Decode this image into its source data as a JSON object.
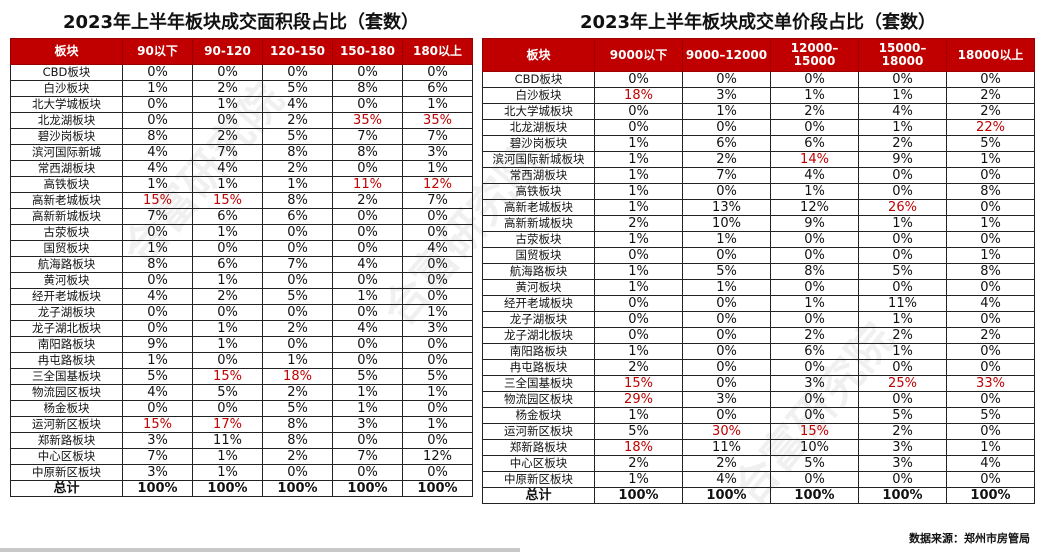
{
  "watermark": "合富研究院",
  "source": "数据来源：郑州市房管局",
  "left": {
    "title": "2023年上半年板块成交面积段占比（套数）",
    "headers": [
      "板块",
      "90以下",
      "90-120",
      "120-150",
      "150-180",
      "180以上"
    ],
    "rows": [
      {
        "name": "CBD板块",
        "values": [
          "0%",
          "0%",
          "0%",
          "0%",
          "0%"
        ],
        "hl": []
      },
      {
        "name": "白沙板块",
        "values": [
          "1%",
          "2%",
          "5%",
          "8%",
          "6%"
        ],
        "hl": []
      },
      {
        "name": "北大学城板块",
        "values": [
          "0%",
          "1%",
          "4%",
          "0%",
          "1%"
        ],
        "hl": []
      },
      {
        "name": "北龙湖板块",
        "values": [
          "0%",
          "0%",
          "2%",
          "35%",
          "35%"
        ],
        "hl": [
          3,
          4
        ]
      },
      {
        "name": "碧沙岗板块",
        "values": [
          "8%",
          "2%",
          "5%",
          "7%",
          "7%"
        ],
        "hl": []
      },
      {
        "name": "滨河国际新城",
        "values": [
          "4%",
          "7%",
          "8%",
          "8%",
          "3%"
        ],
        "hl": []
      },
      {
        "name": "常西湖板块",
        "values": [
          "4%",
          "4%",
          "2%",
          "0%",
          "1%"
        ],
        "hl": []
      },
      {
        "name": "高铁板块",
        "values": [
          "1%",
          "1%",
          "1%",
          "11%",
          "12%"
        ],
        "hl": [
          3,
          4
        ]
      },
      {
        "name": "高新老城板块",
        "values": [
          "15%",
          "15%",
          "8%",
          "2%",
          "7%"
        ],
        "hl": [
          0,
          1
        ]
      },
      {
        "name": "高新新城板块",
        "values": [
          "7%",
          "6%",
          "6%",
          "0%",
          "0%"
        ],
        "hl": []
      },
      {
        "name": "古荥板块",
        "values": [
          "0%",
          "1%",
          "0%",
          "0%",
          "0%"
        ],
        "hl": []
      },
      {
        "name": "国贸板块",
        "values": [
          "1%",
          "0%",
          "0%",
          "0%",
          "4%"
        ],
        "hl": []
      },
      {
        "name": "航海路板块",
        "values": [
          "8%",
          "6%",
          "7%",
          "4%",
          "0%"
        ],
        "hl": []
      },
      {
        "name": "黄河板块",
        "values": [
          "0%",
          "1%",
          "0%",
          "0%",
          "0%"
        ],
        "hl": []
      },
      {
        "name": "经开老城板块",
        "values": [
          "4%",
          "2%",
          "5%",
          "1%",
          "0%"
        ],
        "hl": []
      },
      {
        "name": "龙子湖板块",
        "values": [
          "0%",
          "0%",
          "0%",
          "0%",
          "1%"
        ],
        "hl": []
      },
      {
        "name": "龙子湖北板块",
        "values": [
          "0%",
          "1%",
          "2%",
          "4%",
          "3%"
        ],
        "hl": []
      },
      {
        "name": "南阳路板块",
        "values": [
          "9%",
          "1%",
          "0%",
          "0%",
          "0%"
        ],
        "hl": []
      },
      {
        "name": "冉屯路板块",
        "values": [
          "1%",
          "0%",
          "1%",
          "0%",
          "0%"
        ],
        "hl": []
      },
      {
        "name": "三全国基板块",
        "values": [
          "5%",
          "15%",
          "18%",
          "5%",
          "5%"
        ],
        "hl": [
          1,
          2
        ]
      },
      {
        "name": "物流园区板块",
        "values": [
          "4%",
          "5%",
          "2%",
          "1%",
          "1%"
        ],
        "hl": []
      },
      {
        "name": "杨金板块",
        "values": [
          "0%",
          "0%",
          "5%",
          "1%",
          "0%"
        ],
        "hl": []
      },
      {
        "name": "运河新区板块",
        "values": [
          "15%",
          "17%",
          "8%",
          "3%",
          "1%"
        ],
        "hl": [
          0,
          1
        ]
      },
      {
        "name": "郑新路板块",
        "values": [
          "3%",
          "11%",
          "8%",
          "0%",
          "0%"
        ],
        "hl": []
      },
      {
        "name": "中心区板块",
        "values": [
          "7%",
          "1%",
          "2%",
          "7%",
          "12%"
        ],
        "hl": []
      },
      {
        "name": "中原新区板块",
        "values": [
          "3%",
          "1%",
          "0%",
          "0%",
          "0%"
        ],
        "hl": []
      }
    ],
    "total": {
      "name": "总计",
      "values": [
        "100%",
        "100%",
        "100%",
        "100%",
        "100%"
      ]
    }
  },
  "right": {
    "title": "2023年上半年板块成交单价段占比（套数）",
    "headers": [
      "板块",
      "9000以下",
      "9000–12000",
      "12000–15000",
      "15000–18000",
      "18000以上"
    ],
    "rows": [
      {
        "name": "CBD板块",
        "values": [
          "0%",
          "0%",
          "0%",
          "0%",
          "0%"
        ],
        "hl": []
      },
      {
        "name": "白沙板块",
        "values": [
          "18%",
          "3%",
          "1%",
          "1%",
          "2%"
        ],
        "hl": [
          0
        ]
      },
      {
        "name": "北大学城板块",
        "values": [
          "0%",
          "1%",
          "2%",
          "4%",
          "2%"
        ],
        "hl": []
      },
      {
        "name": "北龙湖板块",
        "values": [
          "0%",
          "0%",
          "0%",
          "1%",
          "22%"
        ],
        "hl": [
          4
        ]
      },
      {
        "name": "碧沙岗板块",
        "values": [
          "1%",
          "6%",
          "6%",
          "2%",
          "5%"
        ],
        "hl": []
      },
      {
        "name": "滨河国际新城板块",
        "values": [
          "1%",
          "2%",
          "14%",
          "9%",
          "1%"
        ],
        "hl": [
          2
        ]
      },
      {
        "name": "常西湖板块",
        "values": [
          "1%",
          "7%",
          "4%",
          "0%",
          "0%"
        ],
        "hl": []
      },
      {
        "name": "高铁板块",
        "values": [
          "1%",
          "0%",
          "1%",
          "0%",
          "8%"
        ],
        "hl": []
      },
      {
        "name": "高新老城板块",
        "values": [
          "1%",
          "13%",
          "12%",
          "26%",
          "0%"
        ],
        "hl": [
          3
        ]
      },
      {
        "name": "高新新城板块",
        "values": [
          "2%",
          "10%",
          "9%",
          "1%",
          "1%"
        ],
        "hl": []
      },
      {
        "name": "古荥板块",
        "values": [
          "1%",
          "1%",
          "0%",
          "0%",
          "0%"
        ],
        "hl": []
      },
      {
        "name": "国贸板块",
        "values": [
          "0%",
          "0%",
          "0%",
          "0%",
          "1%"
        ],
        "hl": []
      },
      {
        "name": "航海路板块",
        "values": [
          "1%",
          "5%",
          "8%",
          "5%",
          "8%"
        ],
        "hl": []
      },
      {
        "name": "黄河板块",
        "values": [
          "1%",
          "1%",
          "0%",
          "0%",
          "0%"
        ],
        "hl": []
      },
      {
        "name": "经开老城板块",
        "values": [
          "0%",
          "0%",
          "1%",
          "11%",
          "4%"
        ],
        "hl": []
      },
      {
        "name": "龙子湖板块",
        "values": [
          "0%",
          "0%",
          "0%",
          "1%",
          "0%"
        ],
        "hl": []
      },
      {
        "name": "龙子湖北板块",
        "values": [
          "0%",
          "0%",
          "2%",
          "2%",
          "2%"
        ],
        "hl": []
      },
      {
        "name": "南阳路板块",
        "values": [
          "1%",
          "0%",
          "6%",
          "1%",
          "0%"
        ],
        "hl": []
      },
      {
        "name": "冉屯路板块",
        "values": [
          "2%",
          "0%",
          "0%",
          "0%",
          "0%"
        ],
        "hl": []
      },
      {
        "name": "三全国基板块",
        "values": [
          "15%",
          "0%",
          "3%",
          "25%",
          "33%"
        ],
        "hl": [
          0,
          3,
          4
        ]
      },
      {
        "name": "物流园区板块",
        "values": [
          "29%",
          "3%",
          "0%",
          "0%",
          "0%"
        ],
        "hl": [
          0
        ]
      },
      {
        "name": "杨金板块",
        "values": [
          "1%",
          "0%",
          "0%",
          "5%",
          "5%"
        ],
        "hl": []
      },
      {
        "name": "运河新区板块",
        "values": [
          "5%",
          "30%",
          "15%",
          "2%",
          "0%"
        ],
        "hl": [
          1,
          2
        ]
      },
      {
        "name": "郑新路板块",
        "values": [
          "18%",
          "11%",
          "10%",
          "3%",
          "1%"
        ],
        "hl": [
          0
        ]
      },
      {
        "name": "中心区板块",
        "values": [
          "2%",
          "2%",
          "5%",
          "3%",
          "4%"
        ],
        "hl": []
      },
      {
        "name": "中原新区板块",
        "values": [
          "1%",
          "4%",
          "0%",
          "0%",
          "0%"
        ],
        "hl": []
      }
    ],
    "total": {
      "name": "总计",
      "values": [
        "100%",
        "100%",
        "100%",
        "100%",
        "100%"
      ]
    }
  }
}
